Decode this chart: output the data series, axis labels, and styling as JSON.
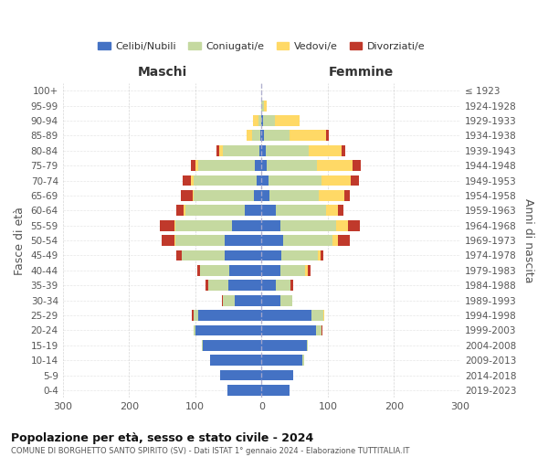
{
  "age_groups": [
    "0-4",
    "5-9",
    "10-14",
    "15-19",
    "20-24",
    "25-29",
    "30-34",
    "35-39",
    "40-44",
    "45-49",
    "50-54",
    "55-59",
    "60-64",
    "65-69",
    "70-74",
    "75-79",
    "80-84",
    "85-89",
    "90-94",
    "95-99",
    "100+"
  ],
  "birth_years": [
    "2019-2023",
    "2014-2018",
    "2009-2013",
    "2004-2008",
    "1999-2003",
    "1994-1998",
    "1989-1993",
    "1984-1988",
    "1979-1983",
    "1974-1978",
    "1969-1973",
    "1964-1968",
    "1959-1963",
    "1954-1958",
    "1949-1953",
    "1944-1948",
    "1939-1943",
    "1934-1938",
    "1929-1933",
    "1924-1928",
    "≤ 1923"
  ],
  "males_celibi": [
    52,
    62,
    78,
    88,
    100,
    95,
    40,
    50,
    48,
    55,
    55,
    45,
    25,
    12,
    8,
    10,
    3,
    2,
    0,
    0,
    0
  ],
  "males_coniugati": [
    0,
    0,
    0,
    2,
    2,
    8,
    18,
    30,
    45,
    65,
    75,
    85,
    90,
    90,
    95,
    85,
    55,
    12,
    5,
    0,
    0
  ],
  "males_vedovi": [
    0,
    0,
    0,
    0,
    0,
    0,
    0,
    0,
    0,
    0,
    2,
    2,
    2,
    2,
    4,
    4,
    6,
    8,
    8,
    1,
    0
  ],
  "males_divorziati": [
    0,
    0,
    0,
    0,
    0,
    2,
    2,
    4,
    4,
    8,
    18,
    22,
    12,
    18,
    12,
    8,
    4,
    0,
    0,
    0,
    0
  ],
  "females_nubili": [
    42,
    48,
    62,
    68,
    82,
    75,
    28,
    22,
    28,
    30,
    32,
    28,
    22,
    12,
    10,
    8,
    6,
    4,
    2,
    0,
    0
  ],
  "females_coniugate": [
    0,
    0,
    2,
    2,
    8,
    18,
    18,
    22,
    38,
    55,
    75,
    85,
    75,
    75,
    80,
    75,
    65,
    38,
    18,
    4,
    0
  ],
  "females_vedove": [
    0,
    0,
    0,
    0,
    0,
    2,
    0,
    0,
    4,
    4,
    8,
    18,
    18,
    38,
    45,
    55,
    50,
    55,
    38,
    4,
    0
  ],
  "females_divorziate": [
    0,
    0,
    0,
    0,
    2,
    0,
    0,
    4,
    4,
    4,
    18,
    18,
    8,
    8,
    12,
    12,
    6,
    4,
    0,
    0,
    0
  ],
  "colors": {
    "celibi": "#4472c4",
    "coniugati": "#c5d9a0",
    "vedovi": "#ffd966",
    "divorziati": "#c0392b"
  },
  "title": "Popolazione per età, sesso e stato civile - 2024",
  "subtitle": "COMUNE DI BORGHETTO SANTO SPIRITO (SV) - Dati ISTAT 1° gennaio 2024 - Elaborazione TUTTITALIA.IT",
  "xlabel_left": "Maschi",
  "xlabel_right": "Femmine",
  "ylabel_left": "Fasce di età",
  "ylabel_right": "Anni di nascita",
  "legend_labels": [
    "Celibi/Nubili",
    "Coniugati/e",
    "Vedovi/e",
    "Divorziati/e"
  ],
  "background_color": "#ffffff"
}
